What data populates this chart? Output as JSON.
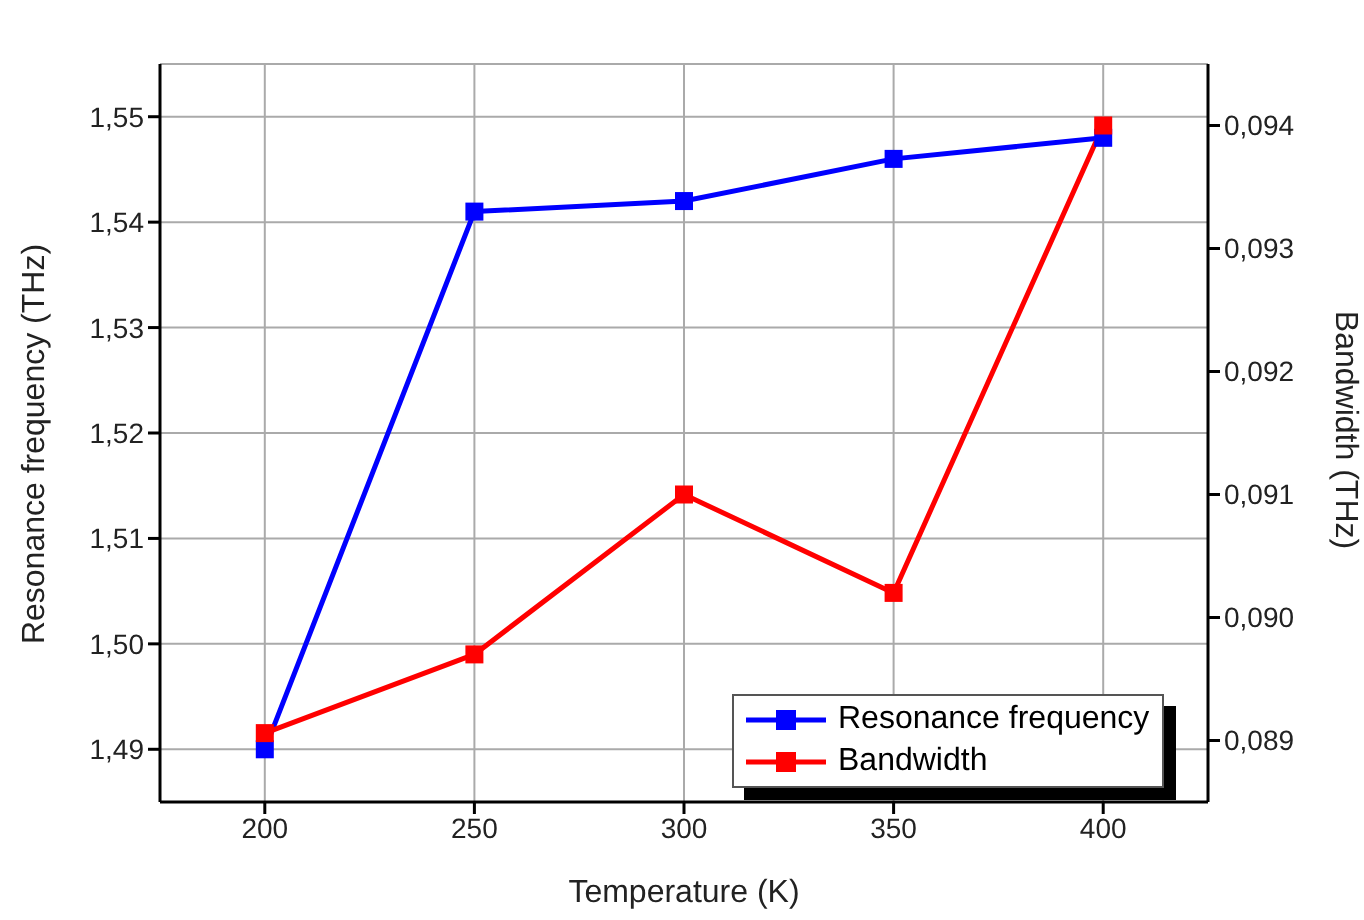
{
  "chart_data": {
    "type": "line",
    "xlabel": "Temperature (K)",
    "ylabel": "Resonance frequency (THz)",
    "y2label": "Bandwidth (THz)",
    "x": [
      200,
      250,
      300,
      350,
      400
    ],
    "series": [
      {
        "name": "Resonance frequency",
        "color": "#0000ff",
        "values": [
          1.49,
          1.541,
          1.542,
          1.546,
          1.548
        ]
      },
      {
        "name": "Bandwidth",
        "color": "#ff0000",
        "axis": "y2",
        "values": [
          0.08906,
          0.0897,
          0.091,
          0.0902,
          0.094
        ]
      }
    ],
    "xlim": [
      175,
      425
    ],
    "xticks": [
      200,
      250,
      300,
      350,
      400
    ],
    "ylim": [
      1.485,
      1.555
    ],
    "yticks": [
      {
        "value": 1.49,
        "label": "1,49"
      },
      {
        "value": 1.5,
        "label": "1,50"
      },
      {
        "value": 1.51,
        "label": "1,51"
      },
      {
        "value": 1.52,
        "label": "1,52"
      },
      {
        "value": 1.53,
        "label": "1,53"
      },
      {
        "value": 1.54,
        "label": "1,54"
      },
      {
        "value": 1.55,
        "label": "1,55"
      }
    ],
    "y2lim": [
      0.0885,
      0.0945
    ],
    "y2ticks": [
      {
        "value": 0.089,
        "label": "0,089"
      },
      {
        "value": 0.09,
        "label": "0,090"
      },
      {
        "value": 0.091,
        "label": "0,091"
      },
      {
        "value": 0.092,
        "label": "0,092"
      },
      {
        "value": 0.093,
        "label": "0,093"
      },
      {
        "value": 0.094,
        "label": "0,094"
      }
    ],
    "grid": true,
    "legend": "bottom right",
    "marker": "square",
    "line_style": "solid"
  }
}
